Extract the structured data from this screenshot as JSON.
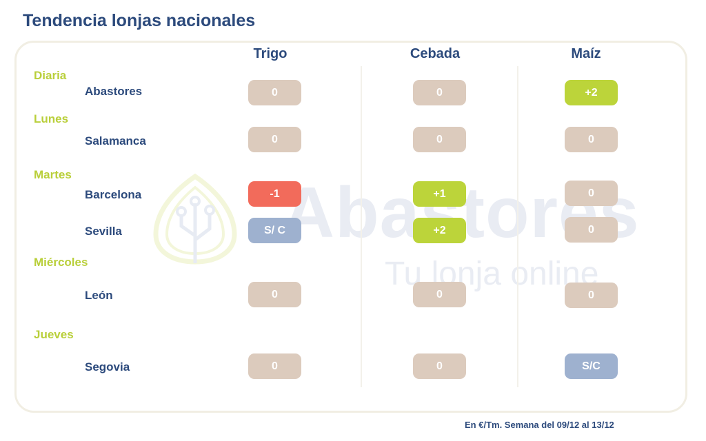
{
  "title": "Tendencia lonjas nacionales",
  "columns": [
    "Trigo",
    "Cebada",
    "Maíz"
  ],
  "groups": [
    {
      "day": "Diaria",
      "markets": [
        {
          "name": "Abastores",
          "values": [
            {
              "text": "0",
              "status": "neutral"
            },
            {
              "text": "0",
              "status": "neutral"
            },
            {
              "text": "+2",
              "status": "up"
            }
          ]
        }
      ]
    },
    {
      "day": "Lunes",
      "markets": [
        {
          "name": "Salamanca",
          "values": [
            {
              "text": "0",
              "status": "neutral"
            },
            {
              "text": "0",
              "status": "neutral"
            },
            {
              "text": "0",
              "status": "neutral"
            }
          ]
        }
      ]
    },
    {
      "day": "Martes",
      "markets": [
        {
          "name": "Barcelona",
          "values": [
            {
              "text": "-1",
              "status": "down"
            },
            {
              "text": "+1",
              "status": "up"
            },
            {
              "text": "0",
              "status": "neutral"
            }
          ]
        },
        {
          "name": "Sevilla",
          "values": [
            {
              "text": "S/ C",
              "status": "nc"
            },
            {
              "text": "+2",
              "status": "up"
            },
            {
              "text": "0",
              "status": "neutral"
            }
          ]
        }
      ]
    },
    {
      "day": "Miércoles",
      "markets": [
        {
          "name": "León",
          "values": [
            {
              "text": "0",
              "status": "neutral"
            },
            {
              "text": "0",
              "status": "neutral"
            },
            {
              "text": "0",
              "status": "neutral"
            }
          ]
        }
      ]
    },
    {
      "day": "Jueves",
      "markets": [
        {
          "name": "Segovia",
          "values": [
            {
              "text": "0",
              "status": "neutral"
            },
            {
              "text": "0",
              "status": "neutral"
            },
            {
              "text": "S/C",
              "status": "nc"
            }
          ]
        }
      ]
    }
  ],
  "status_colors": {
    "neutral": "#dccbbd",
    "up": "#bcd43a",
    "down": "#f26b5b",
    "nc": "#9eb1cf"
  },
  "watermark": {
    "brand": "Abastores",
    "tagline": "Tu lonja online",
    "icon": "leaf-circuit-icon"
  },
  "footer": "En €/Tm. Semana del 09/12 al 13/12"
}
